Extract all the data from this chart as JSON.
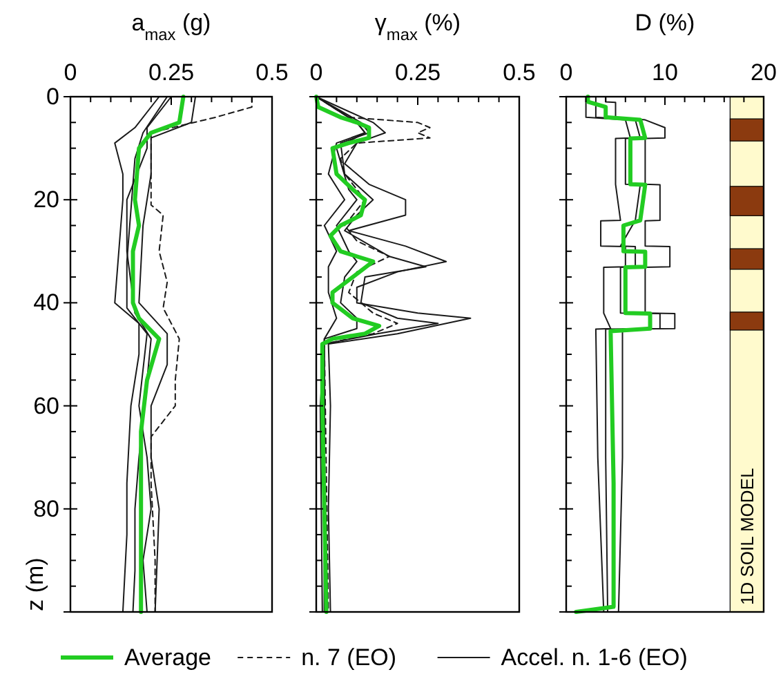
{
  "chart_data": [
    {
      "type": "line",
      "xlabel": "a$_{max}$ (g)",
      "ylabel": "z (m)",
      "xlim": [
        0,
        0.5
      ],
      "ylim": [
        100,
        0
      ],
      "xticks": [
        0,
        {
          "value": 0.05,
          "label": null
        },
        {
          "value": 0.1,
          "label": null
        },
        {
          "value": 0.15,
          "label": null
        },
        {
          "value": 0.2,
          "label": null
        },
        0.25,
        {
          "value": 0.3,
          "label": null
        },
        {
          "value": 0.35,
          "label": null
        },
        {
          "value": 0.4,
          "label": null
        },
        {
          "value": 0.45,
          "label": null
        },
        0.5
      ],
      "yticks": [
        0,
        {
          "value": 5,
          "label": null
        },
        {
          "value": 10,
          "label": null
        },
        {
          "value": 15,
          "label": null
        },
        20,
        {
          "value": 25,
          "label": null
        },
        {
          "value": 30,
          "label": null
        },
        {
          "value": 35,
          "label": null
        },
        40,
        {
          "value": 45,
          "label": null
        },
        {
          "value": 50,
          "label": null
        },
        {
          "value": 55,
          "label": null
        },
        60,
        {
          "value": 65,
          "label": null
        },
        {
          "value": 70,
          "label": null
        },
        {
          "value": 75,
          "label": null
        },
        80,
        {
          "value": 85,
          "label": null
        },
        {
          "value": 90,
          "label": null
        },
        {
          "value": 95,
          "label": null
        },
        {
          "value": 100,
          "label": null
        }
      ],
      "legend": "bottom",
      "series": [
        {
          "name": "Accel. n. 1-6 (EO)",
          "color": "#1a1a1a",
          "line_style": "solid",
          "x": [
            0.31,
            0.3,
            0.2,
            0.2,
            0.18,
            0.17,
            0.24,
            0.24,
            0.2,
            0.2,
            0.22,
            0.215,
            0.21
          ],
          "values": [
            0,
            5,
            8,
            15,
            25,
            40,
            46,
            52,
            60,
            70,
            80,
            90,
            100
          ]
        },
        {
          "color": "#1a1a1a",
          "line_style": "solid",
          "x": [
            0.22,
            0.16,
            0.11,
            0.13,
            0.13,
            0.12,
            0.11,
            0.17,
            0.17,
            0.15,
            0.14,
            0.14,
            0.13
          ],
          "values": [
            0,
            6,
            9,
            15,
            20,
            30,
            40,
            44,
            50,
            60,
            75,
            85,
            100
          ]
        },
        {
          "color": "#1a1a1a",
          "line_style": "solid",
          "x": [
            0.25,
            0.19,
            0.19,
            0.14,
            0.14,
            0.15,
            0.16,
            0.2,
            0.19,
            0.17,
            0.16,
            0.16,
            0.155
          ],
          "values": [
            0,
            6,
            10,
            20,
            30,
            36,
            42,
            47,
            55,
            70,
            80,
            92,
            100
          ]
        },
        {
          "color": "#1a1a1a",
          "line_style": "solid",
          "x": [
            0.24,
            0.18,
            0.16,
            0.15,
            0.14,
            0.14,
            0.19,
            0.17,
            0.19,
            0.2,
            0.18,
            0.19
          ],
          "values": [
            0,
            7,
            12,
            22,
            32,
            41,
            46,
            60,
            70,
            80,
            90,
            100
          ]
        },
        {
          "name": "n. 7 (EO)",
          "color": "#1a1a1a",
          "line_style": "dashed",
          "x": [
            0.45,
            0.45,
            0.36,
            0.2,
            0.2,
            0.2,
            0.23,
            0.22,
            0.24,
            0.23,
            0.27,
            0.26,
            0.26,
            0.2,
            0.2,
            0.21,
            0.21
          ],
          "values": [
            0,
            2,
            4,
            7,
            15,
            21,
            23,
            30,
            36,
            41,
            47,
            55,
            60,
            66,
            75,
            90,
            100
          ]
        },
        {
          "name": "Average",
          "color": "#22cc22",
          "line_style": "solid",
          "x": [
            0.28,
            0.27,
            0.2,
            0.17,
            0.16,
            0.17,
            0.155,
            0.155,
            0.17,
            0.22,
            0.19,
            0.175,
            0.175,
            0.175
          ],
          "values": [
            0,
            5,
            7,
            10,
            20,
            25,
            30,
            40,
            43,
            47,
            55,
            65,
            80,
            100
          ]
        }
      ]
    },
    {
      "type": "line",
      "xlabel": "γ$_{max}$ (%)",
      "xlim": [
        0,
        0.5
      ],
      "ylim": [
        100,
        0
      ],
      "tick_labels": "x",
      "xticks": [
        0,
        {
          "value": 0.05,
          "label": null
        },
        {
          "value": 0.1,
          "label": null
        },
        {
          "value": 0.15,
          "label": null
        },
        {
          "value": 0.2,
          "label": null
        },
        0.25,
        {
          "value": 0.3,
          "label": null
        },
        {
          "value": 0.35,
          "label": null
        },
        {
          "value": 0.4,
          "label": null
        },
        {
          "value": 0.45,
          "label": null
        },
        0.5
      ],
      "yticks": [
        {
          "value": 0,
          "label": null
        },
        {
          "value": 5,
          "label": null
        },
        {
          "value": 10,
          "label": null
        },
        {
          "value": 15,
          "label": null
        },
        {
          "value": 20,
          "label": null
        },
        {
          "value": 25,
          "label": null
        },
        {
          "value": 30,
          "label": null
        },
        {
          "value": 35,
          "label": null
        },
        {
          "value": 40,
          "label": null
        },
        {
          "value": 45,
          "label": null
        },
        {
          "value": 50,
          "label": null
        },
        {
          "value": 55,
          "label": null
        },
        {
          "value": 60,
          "label": null
        },
        {
          "value": 65,
          "label": null
        },
        {
          "value": 70,
          "label": null
        },
        {
          "value": 75,
          "label": null
        },
        {
          "value": 80,
          "label": null
        },
        {
          "value": 85,
          "label": null
        },
        {
          "value": 90,
          "label": null
        },
        {
          "value": 95,
          "label": null
        },
        {
          "value": 100,
          "label": null
        }
      ],
      "series": [
        {
          "color": "#1a1a1a",
          "line_style": "solid",
          "x": [
            0,
            0.14,
            0.17,
            0.1,
            0.07,
            0.13,
            0.22,
            0.22,
            0.08,
            0.22,
            0.32,
            0.2,
            0.1,
            0.1,
            0.25,
            0.38,
            0.2,
            0.03,
            0.035,
            0.03,
            0.035
          ],
          "values": [
            0,
            5,
            7,
            9,
            13,
            17,
            20,
            23,
            26,
            29,
            32,
            34,
            37,
            40,
            42,
            43,
            46,
            48,
            60,
            80,
            100
          ]
        },
        {
          "color": "#1a1a1a",
          "line_style": "solid",
          "x": [
            0,
            0.1,
            0.12,
            0.05,
            0.03,
            0.07,
            0.02,
            0.05,
            0.03,
            0.03,
            0.05,
            0.02,
            0.01,
            0.015
          ],
          "values": [
            0,
            5,
            7,
            9,
            15,
            20,
            25,
            30,
            33,
            38,
            43,
            47,
            60,
            100
          ]
        },
        {
          "color": "#1a1a1a",
          "line_style": "solid",
          "x": [
            0,
            0.11,
            0.13,
            0.06,
            0.07,
            0.14,
            0.1,
            0.07,
            0.18,
            0.27,
            0.12,
            0.11,
            0.2,
            0.3,
            0.15,
            0.02,
            0.02
          ],
          "values": [
            0,
            5,
            7,
            9,
            15,
            20,
            23,
            26,
            31,
            33,
            35,
            40,
            43,
            44,
            46,
            48,
            100
          ]
        },
        {
          "color": "#1a1a1a",
          "line_style": "solid",
          "x": [
            0,
            0.1,
            0.12,
            0.05,
            0.08,
            0.1,
            0.05,
            0.08,
            0.1,
            0.07,
            0.06,
            0.1,
            0.1,
            0.02,
            0.02
          ],
          "values": [
            0,
            5,
            7,
            10,
            18,
            20,
            25,
            30,
            32,
            35,
            40,
            43,
            45,
            47,
            100
          ]
        },
        {
          "color": "#1a1a1a",
          "line_style": "dashed",
          "x": [
            0,
            0.08,
            0.25,
            0.28,
            0.25,
            0.28,
            0.1,
            0.06,
            0.07,
            0.12,
            0.07,
            0.1,
            0.18,
            0.1,
            0.08,
            0.14,
            0.2,
            0.14,
            0.02,
            0.03
          ],
          "values": [
            0,
            4,
            5,
            6,
            7,
            8,
            9,
            12,
            15,
            20,
            25,
            28,
            31,
            34,
            38,
            42,
            44,
            46,
            48,
            100
          ]
        },
        {
          "color": "#22cc22",
          "line_style": "solid",
          "x": [
            0,
            0.005,
            0.06,
            0.1,
            0.13,
            0.13,
            0.08,
            0.04,
            0.05,
            0.09,
            0.12,
            0.11,
            0.06,
            0.035,
            0.06,
            0.1,
            0.14,
            0.09,
            0.04,
            0.04,
            0.09,
            0.155,
            0.12,
            0.04,
            0.015,
            0.015,
            0.02,
            0.025
          ],
          "values": [
            0,
            2,
            4,
            5,
            6,
            8,
            9,
            10,
            15,
            18,
            20,
            23,
            25,
            27,
            30,
            31,
            32,
            35,
            38,
            40,
            43,
            44.5,
            46,
            47,
            48,
            60,
            80,
            100
          ]
        }
      ]
    },
    {
      "type": "line",
      "xlabel": "D (%)",
      "xlim": [
        0,
        20
      ],
      "ylim": [
        100,
        0
      ],
      "tick_labels": "x",
      "xticks": [
        0,
        {
          "value": 2,
          "label": null
        },
        {
          "value": 4,
          "label": null
        },
        {
          "value": 6,
          "label": null
        },
        {
          "value": 8,
          "label": null
        },
        10,
        {
          "value": 12,
          "label": null
        },
        {
          "value": 14,
          "label": null
        },
        {
          "value": 16,
          "label": null
        },
        {
          "value": 18,
          "label": null
        },
        20
      ],
      "yticks": [
        {
          "value": 0,
          "label": null
        },
        {
          "value": 5,
          "label": null
        },
        {
          "value": 10,
          "label": null
        },
        {
          "value": 15,
          "label": null
        },
        {
          "value": 20,
          "label": null
        },
        {
          "value": 25,
          "label": null
        },
        {
          "value": 30,
          "label": null
        },
        {
          "value": 35,
          "label": null
        },
        {
          "value": 40,
          "label": null
        },
        {
          "value": 45,
          "label": null
        },
        {
          "value": 50,
          "label": null
        },
        {
          "value": 55,
          "label": null
        },
        {
          "value": 60,
          "label": null
        },
        {
          "value": 65,
          "label": null
        },
        {
          "value": 70,
          "label": null
        },
        {
          "value": 75,
          "label": null
        },
        {
          "value": 80,
          "label": null
        },
        {
          "value": 85,
          "label": null
        },
        {
          "value": 90,
          "label": null
        },
        {
          "value": 95,
          "label": null
        },
        {
          "value": 100,
          "label": null
        }
      ],
      "bands": [
        {
          "axis": "y",
          "from": 0,
          "to": 100,
          "color": "#fffacd"
        },
        {
          "axis": "y",
          "from": 4.3,
          "to": 8.6,
          "color": "#8b3a0f"
        },
        {
          "axis": "y",
          "from": 17.4,
          "to": 23.1,
          "color": "#8b3a0f"
        },
        {
          "axis": "y",
          "from": 29.5,
          "to": 33.5,
          "color": "#8b3a0f"
        },
        {
          "axis": "y",
          "from": 41.8,
          "to": 45.3,
          "color": "#8b3a0f"
        }
      ],
      "annotations": [
        "1D SOIL MODEL"
      ],
      "series": [
        {
          "color": "#1a1a1a",
          "line_style": "solid",
          "x": [
            4,
            4,
            5,
            5,
            8,
            10,
            10,
            8,
            8,
            9.5,
            9.5,
            8,
            8,
            10.5,
            10.5,
            8,
            8,
            11,
            11,
            5.7,
            5.7,
            5.3
          ],
          "values": [
            0,
            1,
            1.1,
            4,
            4.5,
            6,
            8,
            8.1,
            17,
            17.1,
            24,
            24.1,
            29,
            29.1,
            33,
            33.1,
            42,
            42.1,
            45,
            45.1,
            70,
            100
          ]
        },
        {
          "color": "#1a1a1a",
          "line_style": "solid",
          "x": [
            2,
            2,
            6,
            6.5,
            5,
            5,
            5.5,
            3.5,
            3.5,
            6,
            6,
            3.8,
            3.8,
            4.5,
            3,
            3.2,
            3.8
          ],
          "values": [
            0,
            4,
            4.5,
            8,
            8.1,
            17,
            24,
            24.1,
            29,
            29.1,
            33,
            33.1,
            42,
            45,
            45.1,
            70,
            100
          ]
        },
        {
          "color": "#1a1a1a",
          "line_style": "solid",
          "x": [
            3,
            3,
            7,
            7.5,
            6,
            6,
            7.5,
            7,
            5.5,
            7,
            7,
            5.5,
            5.5,
            9.5,
            9.5,
            4,
            4,
            4.2
          ],
          "values": [
            0,
            4,
            4.5,
            8,
            8.1,
            17,
            17.1,
            24,
            29,
            29.1,
            33,
            33.1,
            42,
            42.1,
            45,
            45.1,
            70,
            100
          ]
        },
        {
          "color": "#22cc22",
          "line_style": "solid",
          "x": [
            2.2,
            2.2,
            4,
            4,
            7.5,
            8,
            6.5,
            6.5,
            8,
            7.5,
            5.8,
            5.8,
            8,
            8,
            6,
            6,
            8.5,
            8.5,
            4.5,
            4.8,
            4.8,
            1
          ],
          "values": [
            0,
            1,
            2,
            4,
            4.5,
            8,
            8.1,
            17,
            17.1,
            24,
            25,
            30,
            30.1,
            33,
            33.1,
            42,
            42.1,
            45,
            45.5,
            75,
            99,
            100
          ]
        }
      ]
    }
  ]
}
